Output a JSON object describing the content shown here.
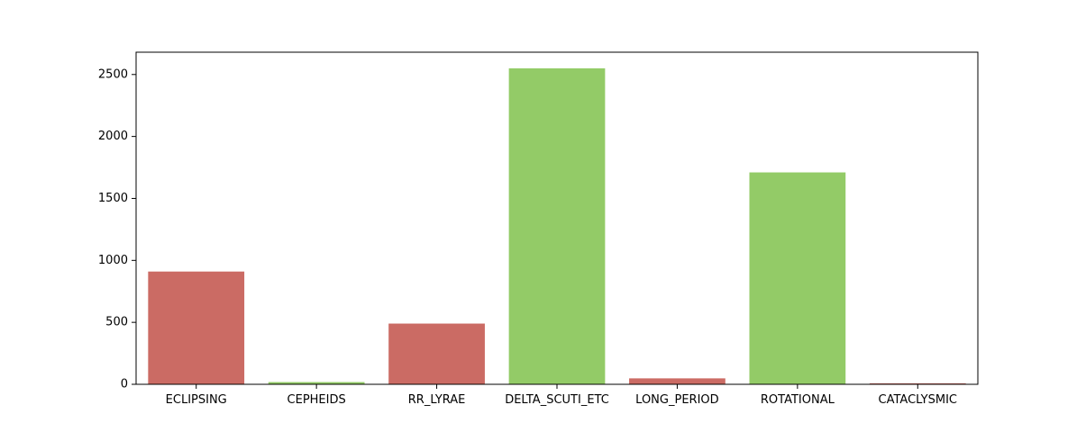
{
  "chart_data": {
    "type": "bar",
    "categories": [
      "ECLIPSING",
      "CEPHEIDS",
      "RR_LYRAE",
      "DELTA_SCUTI_ETC",
      "LONG_PERIOD",
      "ROTATIONAL",
      "CATACLYSMIC"
    ],
    "values": [
      910,
      18,
      490,
      2550,
      48,
      1710,
      8
    ],
    "bar_colors": [
      "#cb6b64",
      "#93cb67",
      "#cb6b64",
      "#93cb67",
      "#cb6b64",
      "#93cb67",
      "#cb6b64"
    ],
    "ylim": [
      0,
      2680
    ],
    "yticks": [
      0,
      500,
      1000,
      1500,
      2000,
      2500
    ],
    "title": "",
    "xlabel": "",
    "ylabel": "",
    "grid": false,
    "legend": "none"
  }
}
